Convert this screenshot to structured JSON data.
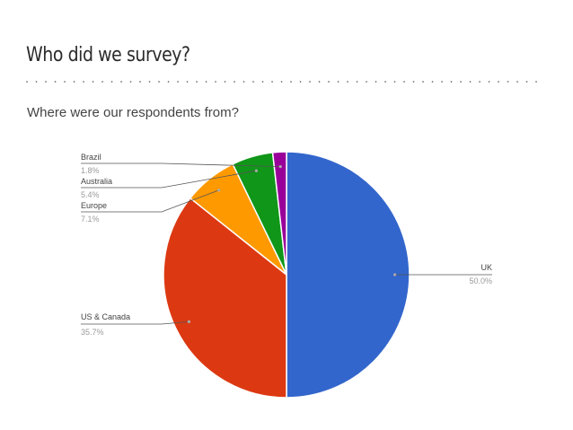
{
  "slide": {
    "title": "Who did we survey?",
    "subtitle": "Where were our respondents from?"
  },
  "chart_data": {
    "type": "pie",
    "title": "",
    "slices": [
      {
        "label": "UK",
        "value": 50.0,
        "display": "50.0%",
        "color": "#3366cc",
        "label_side": "right"
      },
      {
        "label": "US & Canada",
        "value": 35.7,
        "display": "35.7%",
        "color": "#dc3912",
        "label_side": "left"
      },
      {
        "label": "Europe",
        "value": 7.1,
        "display": "7.1%",
        "color": "#ff9900",
        "label_side": "left"
      },
      {
        "label": "Australia",
        "value": 5.4,
        "display": "5.4%",
        "color": "#109618",
        "label_side": "left"
      },
      {
        "label": "Brazil",
        "value": 1.8,
        "display": "1.8%",
        "color": "#990099",
        "label_side": "left"
      }
    ],
    "start_angle": "12 o'clock",
    "direction": "clockwise",
    "legend": "none (labelled leader lines)"
  }
}
